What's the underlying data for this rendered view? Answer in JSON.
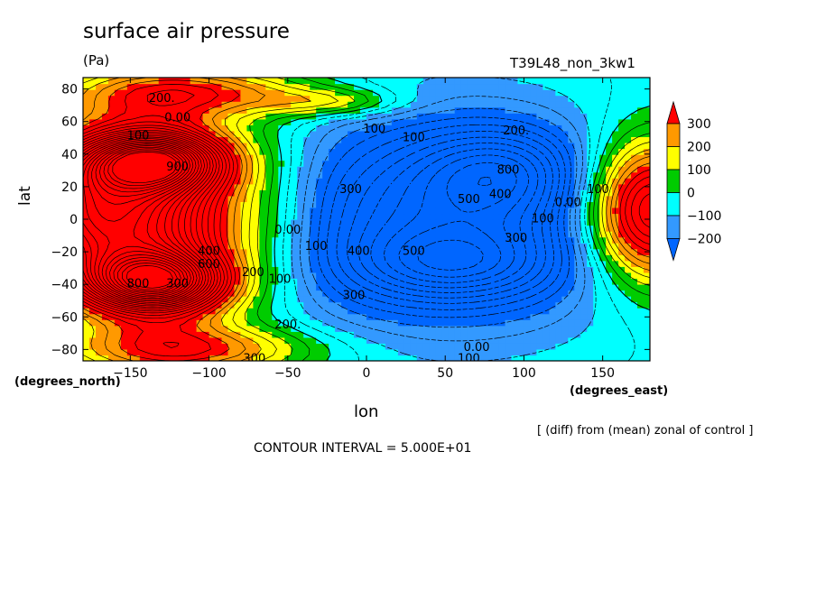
{
  "chart_data": {
    "type": "heatmap",
    "title": "surface air pressure",
    "units": "(Pa)",
    "run_label": "T39L48_non_3kw1",
    "xlabel": "lon",
    "ylabel": "lat",
    "x_units_label": "(degrees_east)",
    "y_units_label": "(degrees_north)",
    "xlim": [
      -180,
      180
    ],
    "ylim": [
      -87,
      87
    ],
    "x_ticks": [
      -150,
      -100,
      -50,
      0,
      50,
      100,
      150
    ],
    "y_ticks": [
      -80,
      -60,
      -40,
      -20,
      0,
      20,
      40,
      60,
      80
    ],
    "colorbar": {
      "levels": [
        300,
        200,
        100,
        0,
        -100,
        -200
      ],
      "colors": [
        "#ff0000",
        "#ff9900",
        "#ffff00",
        "#00cc00",
        "#00ffff",
        "#3399ff",
        "#0066ff"
      ]
    },
    "contour_labels": [
      {
        "text": "200.",
        "lon": -130,
        "lat": 74
      },
      {
        "text": "0.00",
        "lon": -120,
        "lat": 62
      },
      {
        "text": "100",
        "lon": -145,
        "lat": 51
      },
      {
        "text": "900",
        "lon": -120,
        "lat": 32
      },
      {
        "text": "100",
        "lon": 5,
        "lat": 55
      },
      {
        "text": "100",
        "lon": 30,
        "lat": 50
      },
      {
        "text": "200.",
        "lon": 95,
        "lat": 54
      },
      {
        "text": "300",
        "lon": -10,
        "lat": 18
      },
      {
        "text": "800",
        "lon": 90,
        "lat": 30
      },
      {
        "text": "500",
        "lon": 65,
        "lat": 12
      },
      {
        "text": "400",
        "lon": 85,
        "lat": 15
      },
      {
        "text": "0.00",
        "lon": 128,
        "lat": 10
      },
      {
        "text": "100",
        "lon": 147,
        "lat": 18
      },
      {
        "text": "100",
        "lon": 112,
        "lat": 0
      },
      {
        "text": "0.00",
        "lon": -50,
        "lat": -7
      },
      {
        "text": "100",
        "lon": -32,
        "lat": -17
      },
      {
        "text": "400",
        "lon": -5,
        "lat": -20
      },
      {
        "text": "500",
        "lon": 30,
        "lat": -20
      },
      {
        "text": "300",
        "lon": 95,
        "lat": -12
      },
      {
        "text": "400",
        "lon": -100,
        "lat": -20
      },
      {
        "text": "600",
        "lon": -100,
        "lat": -28
      },
      {
        "text": "800",
        "lon": -145,
        "lat": -40
      },
      {
        "text": "300",
        "lon": -120,
        "lat": -40
      },
      {
        "text": "200",
        "lon": -72,
        "lat": -33
      },
      {
        "text": "100",
        "lon": -55,
        "lat": -37
      },
      {
        "text": "300",
        "lon": -8,
        "lat": -47
      },
      {
        "text": "200.",
        "lon": -50,
        "lat": -65
      },
      {
        "text": "300.",
        "lon": -70,
        "lat": -86
      },
      {
        "text": "0.00",
        "lon": 70,
        "lat": -79
      },
      {
        "text": "100",
        "lon": 65,
        "lat": -86
      }
    ]
  },
  "annotations": {
    "note": "[ (diff) from (mean) zonal of control ]",
    "contour_interval": "CONTOUR INTERVAL = 5.000E+01"
  }
}
